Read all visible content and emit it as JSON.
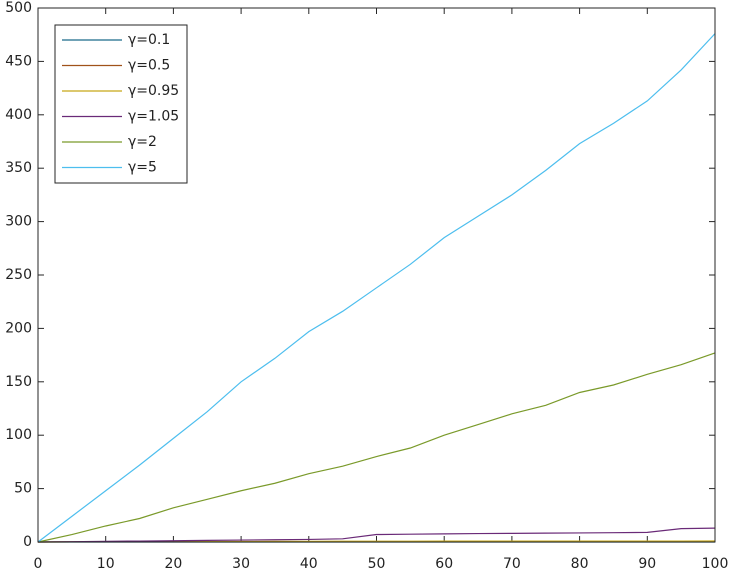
{
  "chart_data": {
    "type": "line",
    "x": [
      0,
      5,
      10,
      15,
      20,
      25,
      30,
      35,
      40,
      45,
      50,
      55,
      60,
      65,
      70,
      75,
      80,
      85,
      90,
      95,
      100
    ],
    "series": [
      {
        "name": "γ=0.1",
        "color": "#1a6b8a",
        "values": [
          0,
          0,
          0,
          0,
          0,
          0,
          0,
          0,
          0,
          0,
          0,
          0,
          0,
          0,
          0,
          0,
          0,
          0,
          0,
          0,
          0
        ]
      },
      {
        "name": "γ=0.5",
        "color": "#a0521a",
        "values": [
          0,
          0.05,
          0.1,
          0.1,
          0.1,
          0.15,
          0.15,
          0.15,
          0.2,
          0.2,
          0.2,
          0.2,
          0.2,
          0.2,
          0.2,
          0.25,
          0.25,
          0.25,
          0.25,
          0.25,
          0.25
        ]
      },
      {
        "name": "γ=0.95",
        "color": "#c8a818",
        "values": [
          0,
          0.1,
          0.2,
          0.3,
          0.4,
          0.5,
          0.5,
          0.6,
          0.6,
          0.7,
          0.7,
          0.7,
          0.8,
          0.8,
          0.8,
          0.8,
          0.9,
          0.9,
          0.9,
          0.9,
          1
        ]
      },
      {
        "name": "γ=1.05",
        "color": "#6a2a78",
        "values": [
          0,
          0.3,
          0.6,
          0.9,
          1.2,
          1.5,
          1.8,
          2.1,
          2.4,
          3,
          7,
          7.3,
          7.6,
          7.9,
          8.1,
          8.3,
          8.5,
          8.7,
          9,
          12.5,
          13
        ]
      },
      {
        "name": "γ=2",
        "color": "#7a9a2a",
        "values": [
          0,
          7,
          15,
          22,
          32,
          40,
          48,
          55,
          64,
          71,
          80,
          88,
          100,
          110,
          120,
          128,
          140,
          147,
          157,
          166,
          177
        ]
      },
      {
        "name": "γ=5",
        "color": "#4dbeee",
        "values": [
          0,
          24,
          48,
          72,
          97,
          122,
          150,
          172,
          197,
          216,
          238,
          260,
          285,
          305,
          325,
          348,
          373,
          392,
          413,
          442,
          476
        ]
      }
    ],
    "xlim": [
      0,
      100
    ],
    "xticks": [
      0,
      10,
      20,
      30,
      40,
      50,
      60,
      70,
      80,
      90,
      100
    ],
    "ylim": [
      0,
      500
    ],
    "yticks": [
      0,
      50,
      100,
      150,
      200,
      250,
      300,
      350,
      400,
      450,
      500
    ],
    "legend": "upper-left"
  }
}
